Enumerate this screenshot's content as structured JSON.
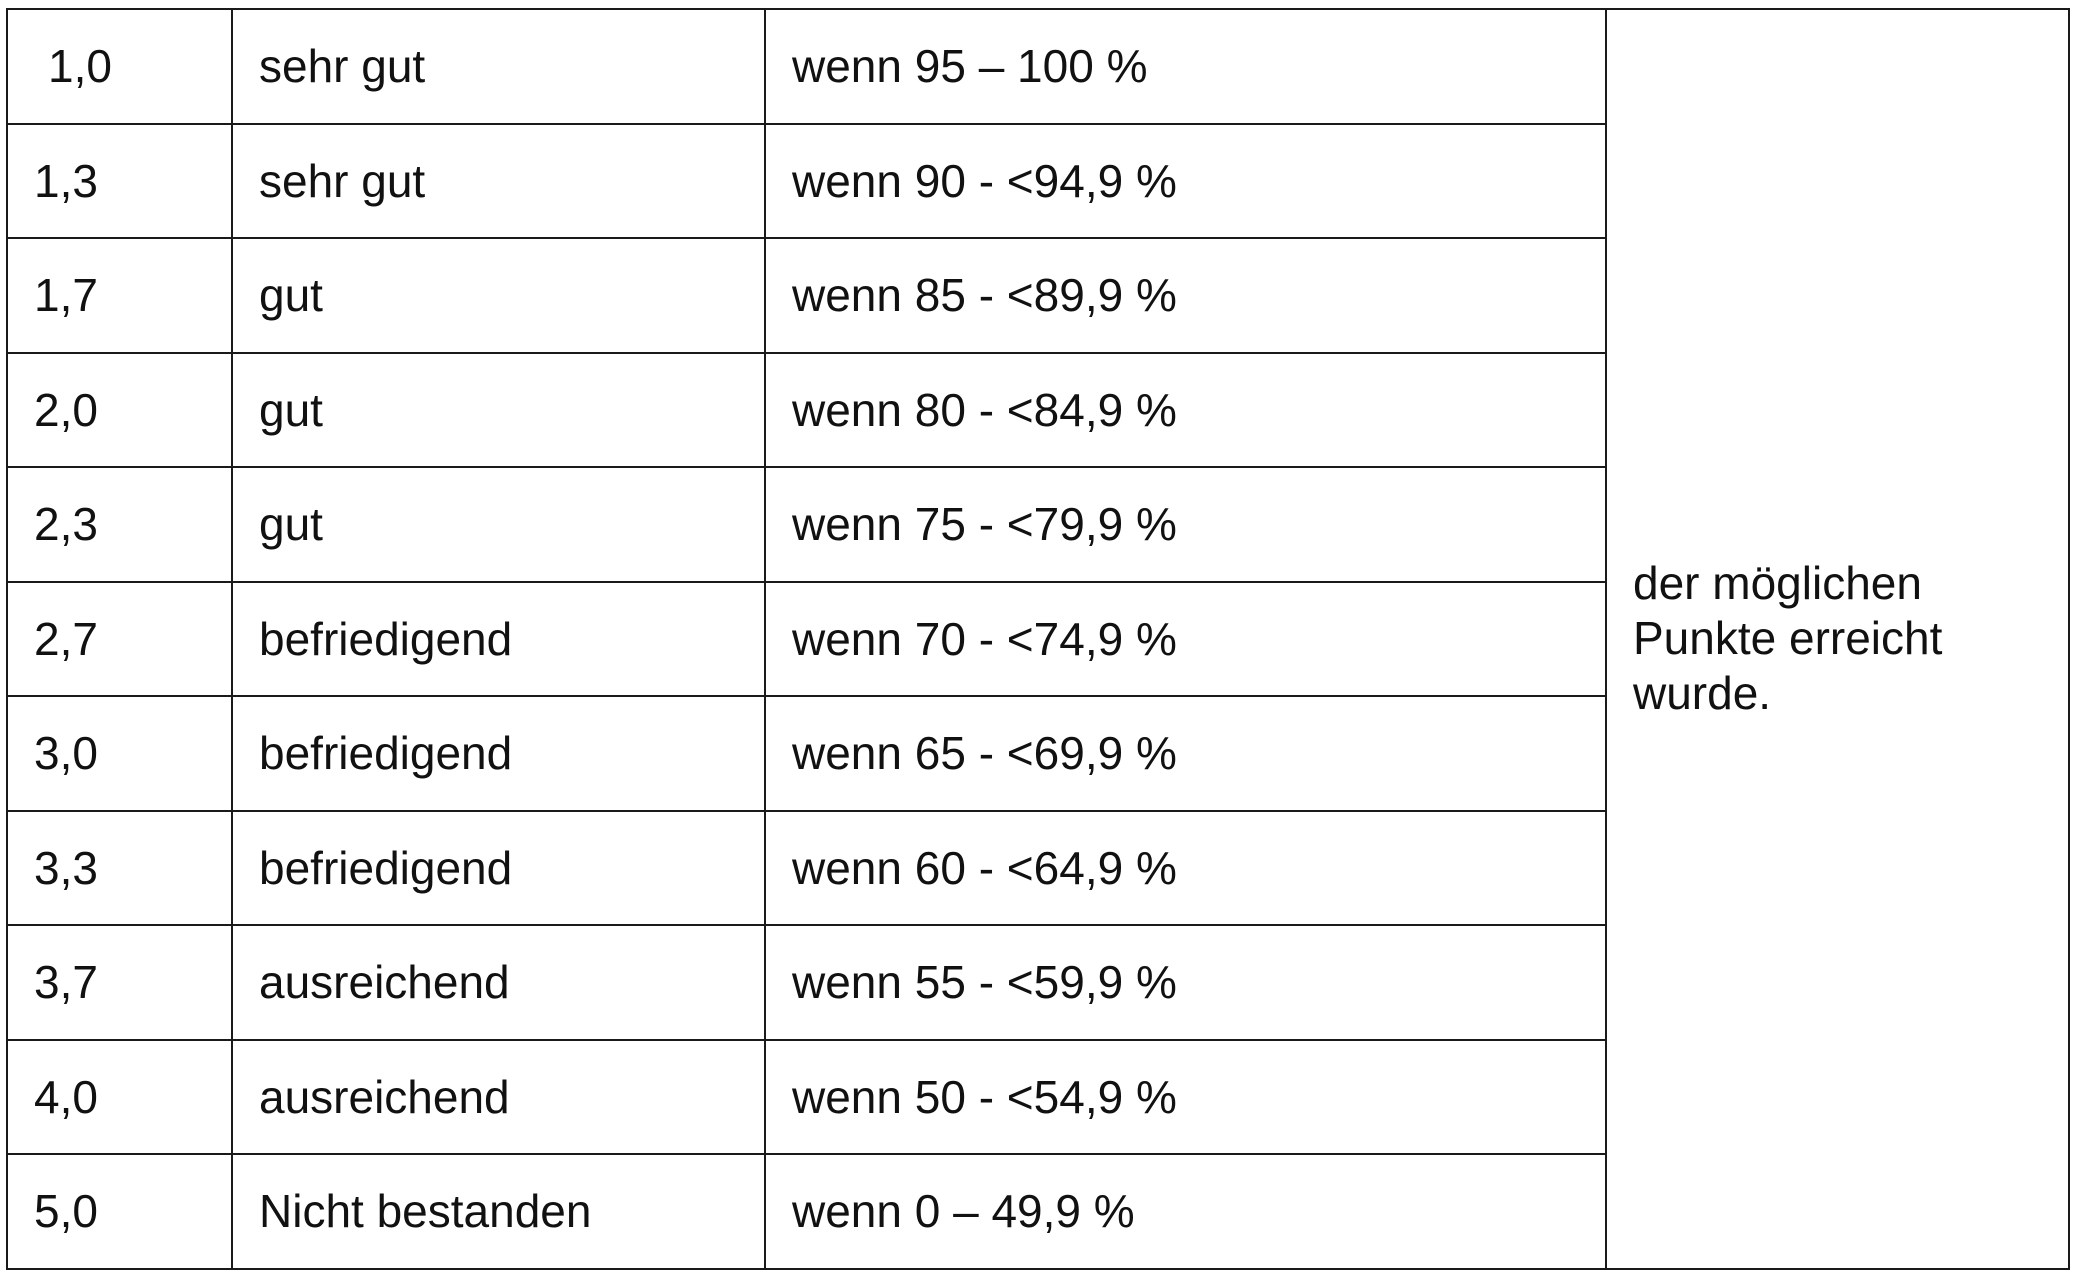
{
  "grade_table": {
    "rows": [
      {
        "grade": "1,0",
        "rating": "sehr gut",
        "range": "wenn 95 – 100 %"
      },
      {
        "grade": "1,3",
        "rating": "sehr gut",
        "range": "wenn 90 - <94,9 %"
      },
      {
        "grade": "1,7",
        "rating": "gut",
        "range": "wenn 85 - <89,9 %"
      },
      {
        "grade": "2,0",
        "rating": "gut",
        "range": "wenn 80 - <84,9 %"
      },
      {
        "grade": "2,3",
        "rating": "gut",
        "range": "wenn 75 - <79,9 %"
      },
      {
        "grade": "2,7",
        "rating": "befriedigend",
        "range": "wenn 70 - <74,9 %"
      },
      {
        "grade": "3,0",
        "rating": "befriedigend",
        "range": "wenn 65 - <69,9 %"
      },
      {
        "grade": "3,3",
        "rating": "befriedigend",
        "range": "wenn 60 - <64,9 %"
      },
      {
        "grade": "3,7",
        "rating": "ausreichend",
        "range": "wenn 55 - <59,9 %"
      },
      {
        "grade": "4,0",
        "rating": "ausreichend",
        "range": "wenn 50 - <54,9 %"
      },
      {
        "grade": "5,0",
        "rating": "Nicht bestanden",
        "range": "wenn 0 – 49,9 %"
      }
    ],
    "note": "der möglichen Punkte erreicht wurde."
  }
}
